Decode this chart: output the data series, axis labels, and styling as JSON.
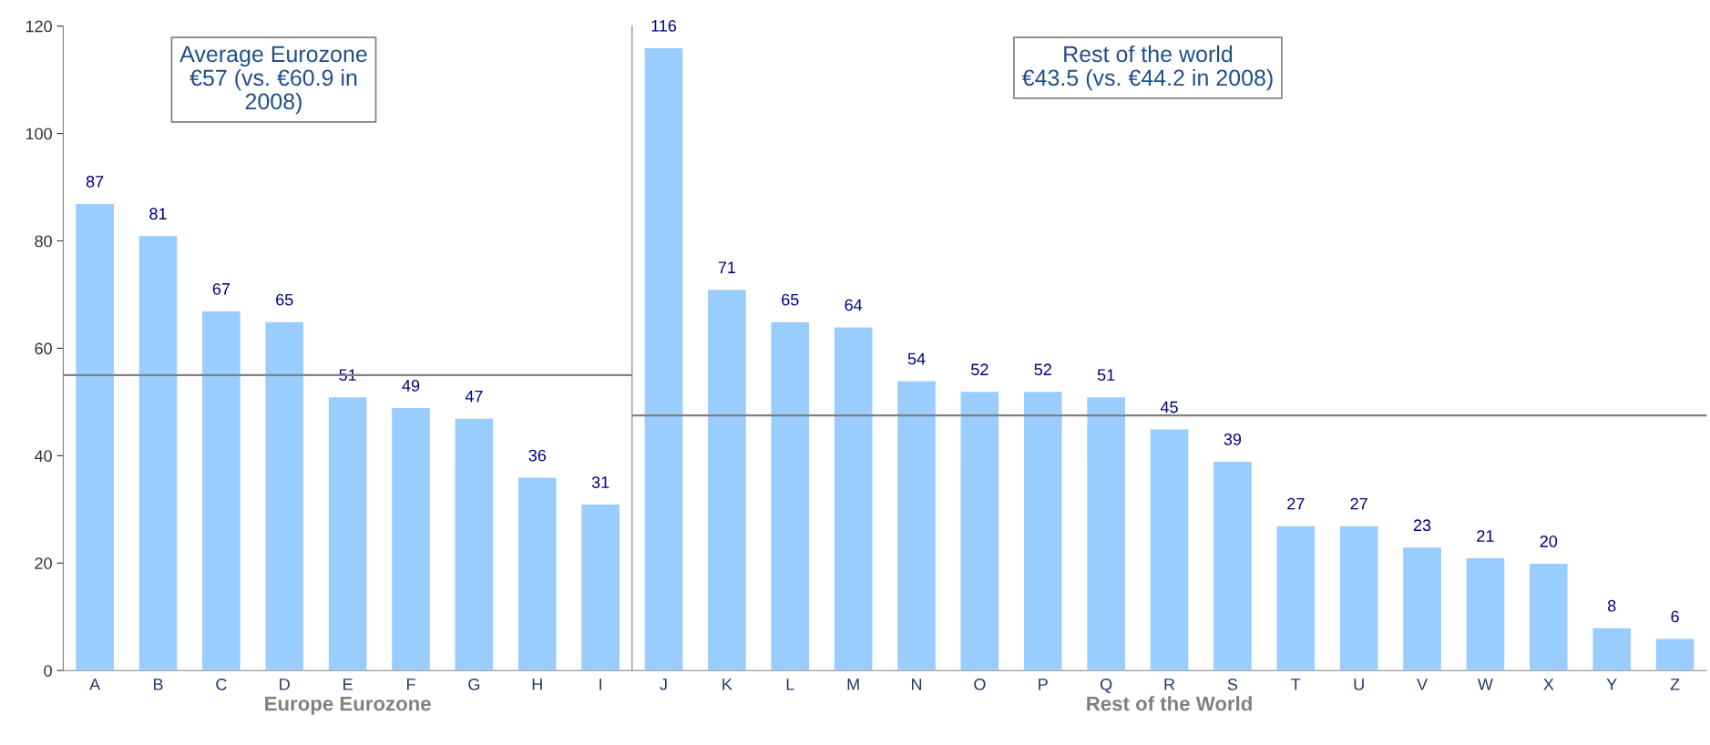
{
  "chart_data": [
    {
      "type": "bar",
      "categories": [
        "A",
        "B",
        "C",
        "D",
        "E",
        "F",
        "G",
        "H",
        "I"
      ],
      "values": [
        87,
        81,
        67,
        65,
        51,
        49,
        47,
        36,
        31
      ],
      "color": "#99ccff",
      "ylim": [
        0,
        120
      ],
      "yticks": [
        0,
        20,
        40,
        60,
        80,
        100,
        120
      ],
      "data_labels": true,
      "xlabel": "Europe Eurozone",
      "ref_lines": [
        {
          "axis": "y",
          "value": 55,
          "color": "#808080"
        }
      ],
      "annotations": [
        "Average Eurozone\n€57 (vs. €60.9 in\n2008)"
      ]
    },
    {
      "type": "bar",
      "categories": [
        "J",
        "K",
        "L",
        "M",
        "N",
        "O",
        "P",
        "Q",
        "R",
        "S",
        "T",
        "U",
        "V",
        "W",
        "X",
        "Y",
        "Z"
      ],
      "values": [
        116,
        71,
        65,
        64,
        54,
        52,
        52,
        51,
        45,
        39,
        27,
        27,
        23,
        21,
        20,
        8,
        6
      ],
      "color": "#99ccff",
      "ylim": [
        0,
        120
      ],
      "tick_labels": "x",
      "data_labels": true,
      "xlabel": "Rest of the World",
      "ref_lines": [
        {
          "axis": "y",
          "value": 47.5,
          "color": "#808080"
        }
      ],
      "annotations": [
        "Rest of the world\n€43.5 (vs. €44.2 in 2008)"
      ]
    }
  ]
}
